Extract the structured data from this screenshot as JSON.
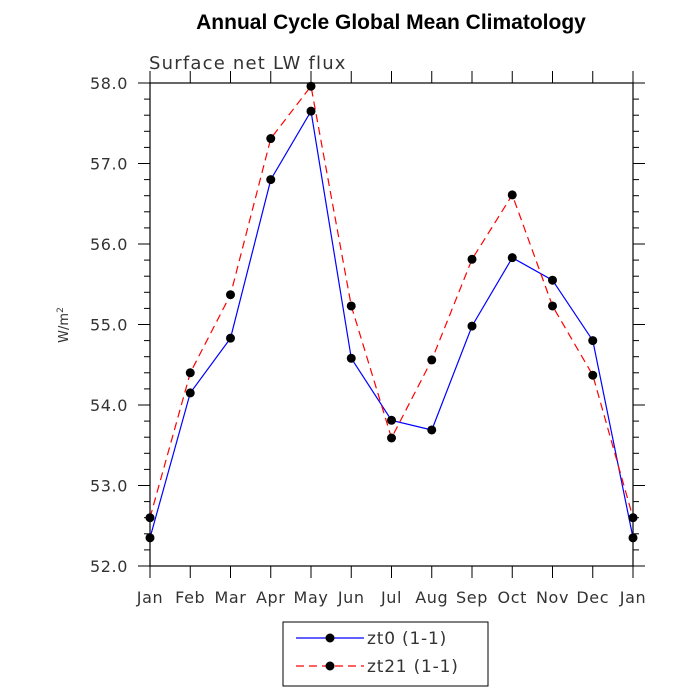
{
  "chart_data": {
    "type": "line",
    "title": "Annual Cycle Global Mean Climatology",
    "subtitle": "Surface net LW flux",
    "xlabel": "",
    "ylabel": "W/m",
    "ylabel_sup": "2",
    "ylim": [
      52.0,
      58.0
    ],
    "yticks": [
      "52.0",
      "53.0",
      "54.0",
      "55.0",
      "56.0",
      "57.0",
      "58.0"
    ],
    "categories": [
      "Jan",
      "Feb",
      "Mar",
      "Apr",
      "May",
      "Jun",
      "Jul",
      "Aug",
      "Sep",
      "Oct",
      "Nov",
      "Dec",
      "Jan"
    ],
    "series": [
      {
        "name": "zt0 (1-1)",
        "color": "#0000ff",
        "dash": "solid",
        "values": [
          52.35,
          54.15,
          54.83,
          56.8,
          57.65,
          54.58,
          53.81,
          53.69,
          54.98,
          55.83,
          55.55,
          54.8,
          52.35
        ]
      },
      {
        "name": "zt21 (1-1)",
        "color": "#ff0000",
        "dash": "dashed",
        "values": [
          52.6,
          54.4,
          55.37,
          57.31,
          57.96,
          55.23,
          53.59,
          54.56,
          55.81,
          56.61,
          55.23,
          54.37,
          52.6
        ]
      }
    ],
    "legend": {
      "placement": "bottom-center",
      "entries": [
        "zt0 (1-1)",
        "zt21 (1-1)"
      ]
    },
    "grid": false
  }
}
